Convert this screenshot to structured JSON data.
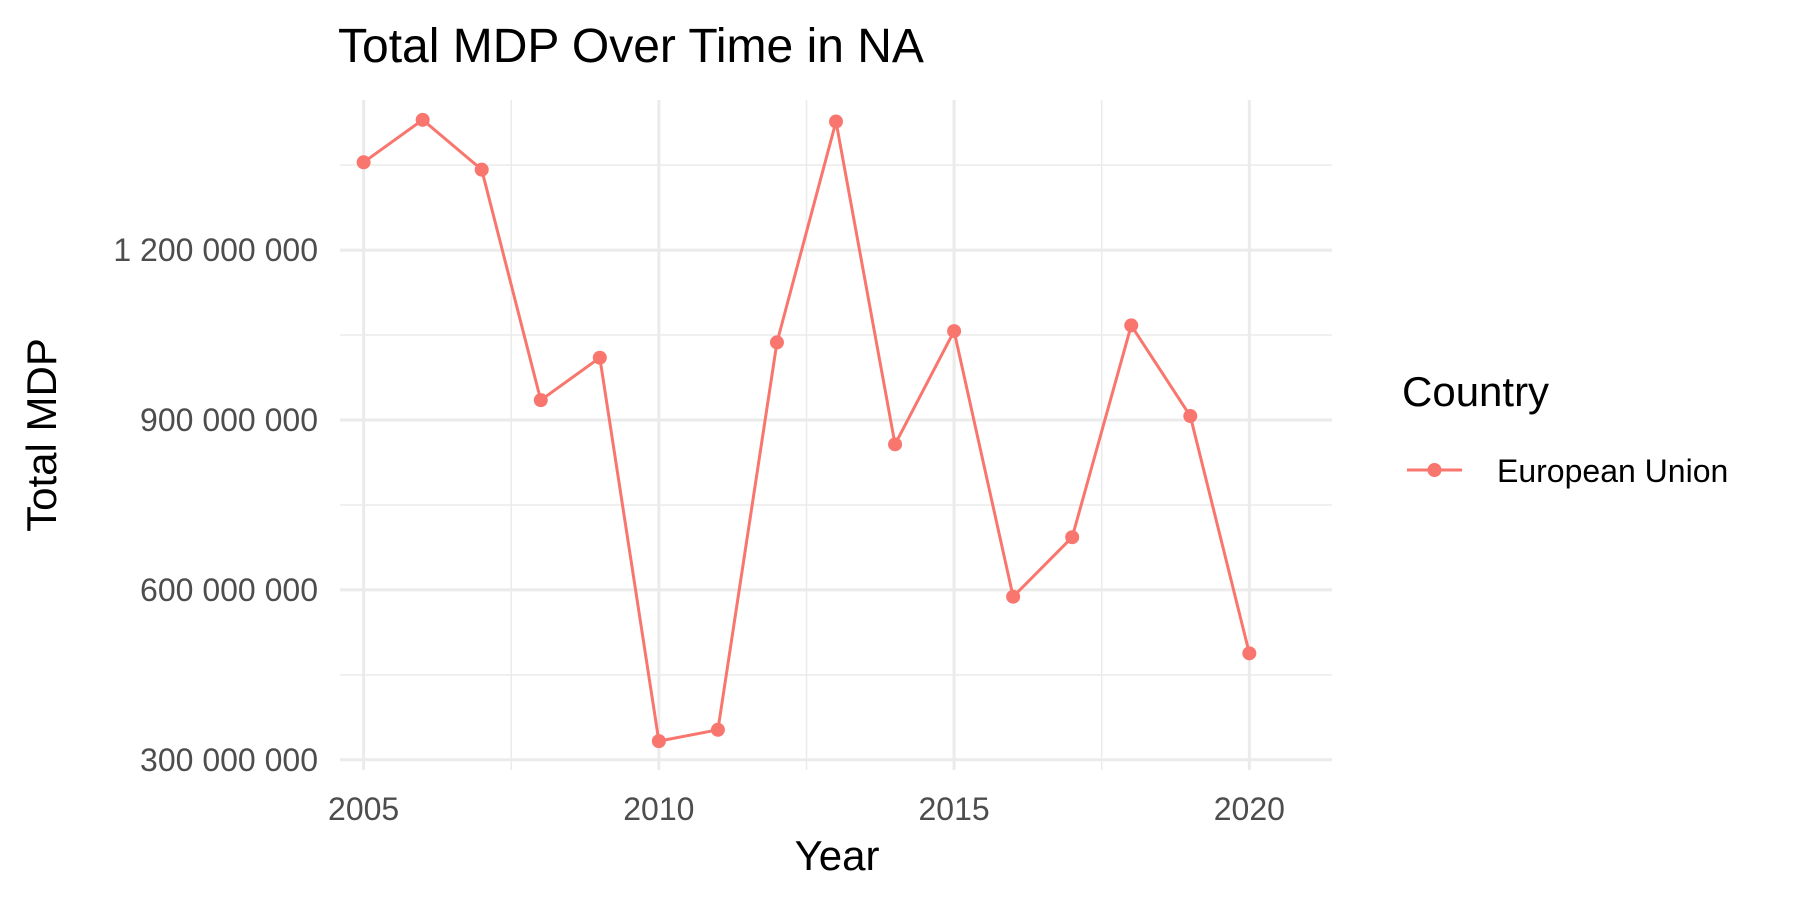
{
  "chart_data": {
    "type": "line",
    "title": "Total MDP Over Time in NA",
    "xlabel": "Year",
    "ylabel": "Total MDP",
    "x": [
      2005,
      2006,
      2007,
      2008,
      2009,
      2010,
      2011,
      2012,
      2013,
      2014,
      2015,
      2016,
      2017,
      2018,
      2019,
      2020
    ],
    "series": [
      {
        "name": "European Union",
        "color": "#f8766d",
        "values": [
          1355000000,
          1430000000,
          1342000000,
          935000000,
          1010000000,
          333000000,
          353000000,
          1037000000,
          1427000000,
          857000000,
          1057000000,
          588000000,
          693000000,
          1067000000,
          907000000,
          488000000
        ]
      }
    ],
    "xlim": [
      2004.6,
      2021.4
    ],
    "ylim": [
      282000000,
      1465000000
    ],
    "x_ticks": [
      2005,
      2010,
      2015,
      2020
    ],
    "x_tick_labels": [
      "2005",
      "2010",
      "2015",
      "2020"
    ],
    "x_minor_ticks": [
      2007.5,
      2012.5,
      2017.5
    ],
    "y_ticks": [
      300000000,
      600000000,
      900000000,
      1200000000
    ],
    "y_tick_labels": [
      "300 000 000",
      "600 000 000",
      "900 000 000",
      "1 200 000 000"
    ],
    "y_minor_ticks": [
      450000000,
      750000000,
      1050000000,
      1350000000
    ],
    "grid": true,
    "legend": {
      "title": "Country",
      "position": "right"
    }
  }
}
